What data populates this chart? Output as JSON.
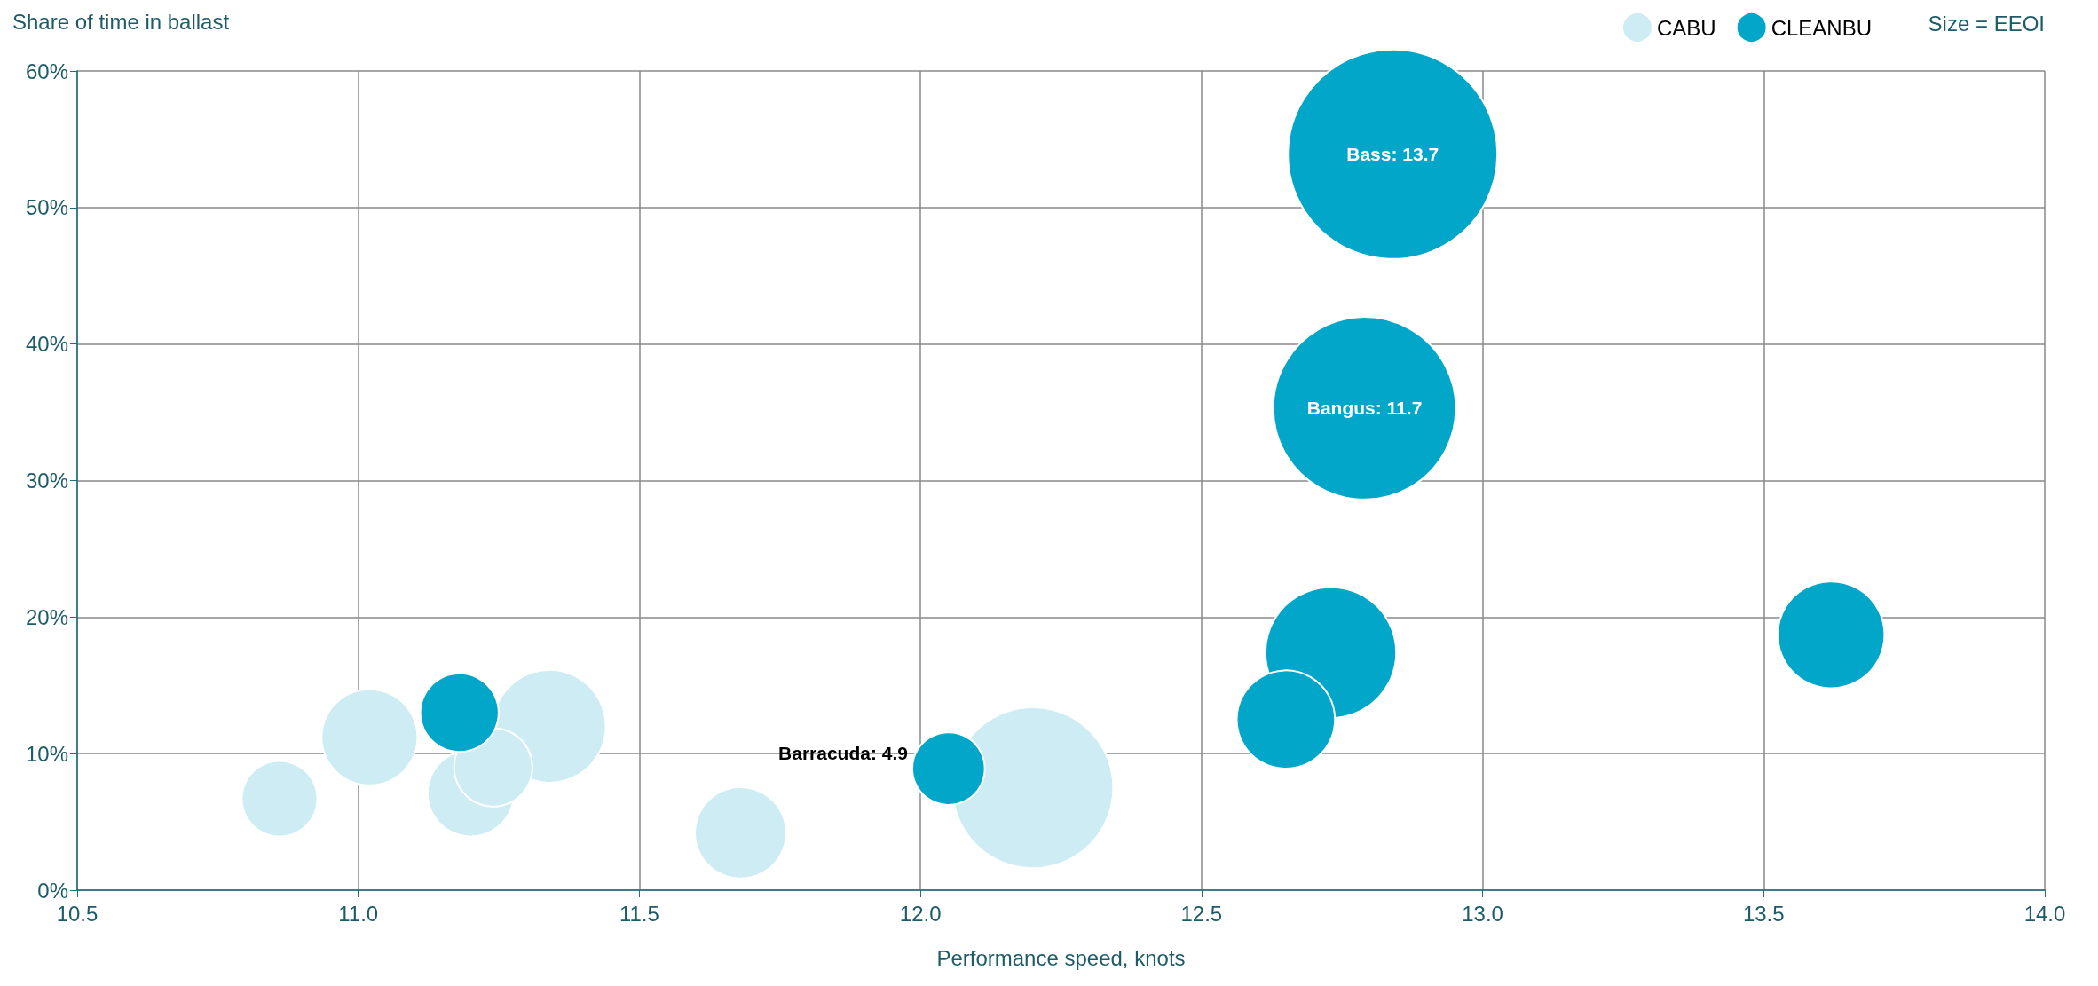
{
  "chart_data": {
    "type": "bubble",
    "xlabel": "Performance speed, knots",
    "ylabel": "Share of time in ballast",
    "xlim": [
      10.5,
      14.0
    ],
    "xticks": [
      {
        "value": 10.5,
        "label": "10.5"
      },
      {
        "value": 11,
        "label": "11.0"
      },
      {
        "value": 11.5,
        "label": "11.5"
      },
      {
        "value": 12,
        "label": "12.0"
      },
      {
        "value": 12.5,
        "label": "12.5"
      },
      {
        "value": 13,
        "label": "13.0"
      },
      {
        "value": 13.5,
        "label": "13.5"
      },
      {
        "value": 14,
        "label": "14.0"
      }
    ],
    "ylim": [
      0,
      60
    ],
    "yticks": [
      {
        "value": 0,
        "label": "0%"
      },
      {
        "value": 10,
        "label": "10%"
      },
      {
        "value": 20,
        "label": "20%"
      },
      {
        "value": 30,
        "label": "30%"
      },
      {
        "value": 40,
        "label": "40%"
      },
      {
        "value": 50,
        "label": "50%"
      },
      {
        "value": 60,
        "label": "60%"
      }
    ],
    "grid": true,
    "legend": "top right",
    "series": [
      {
        "name": "CABU",
        "color": "#cdecf3",
        "x": [
          10.86,
          11.02,
          11.2,
          11.34,
          11.68,
          12.2,
          11.24
        ],
        "values": [
          6.7,
          11.2,
          7.1,
          12,
          4.2,
          7.5,
          9
        ],
        "sizes": [
          0.13,
          0.21,
          0.17,
          0.29,
          0.19,
          0.59,
          0.14
        ]
      },
      {
        "name": "CLEANBU",
        "color": "#02a6c8",
        "x": [
          11.18,
          12.05,
          12.73,
          12.65,
          12.79,
          12.84,
          13.62
        ],
        "values": [
          13,
          8.9,
          17.4,
          12.5,
          35.3,
          53.9,
          18.7
        ],
        "sizes": [
          0.14,
          0.12,
          0.39,
          0.22,
          0.76,
          1,
          0.26
        ]
      }
    ],
    "annotations": [
      {
        "text": "Barracuda: 4.9",
        "x": 12.05,
        "y": 8.9
      },
      {
        "text": "Bangus: 11.7",
        "x": 12.79,
        "y": 35.3
      },
      {
        "text": "Bass: 13.7",
        "x": 12.84,
        "y": 53.9
      },
      "Size = EEOI"
    ]
  }
}
